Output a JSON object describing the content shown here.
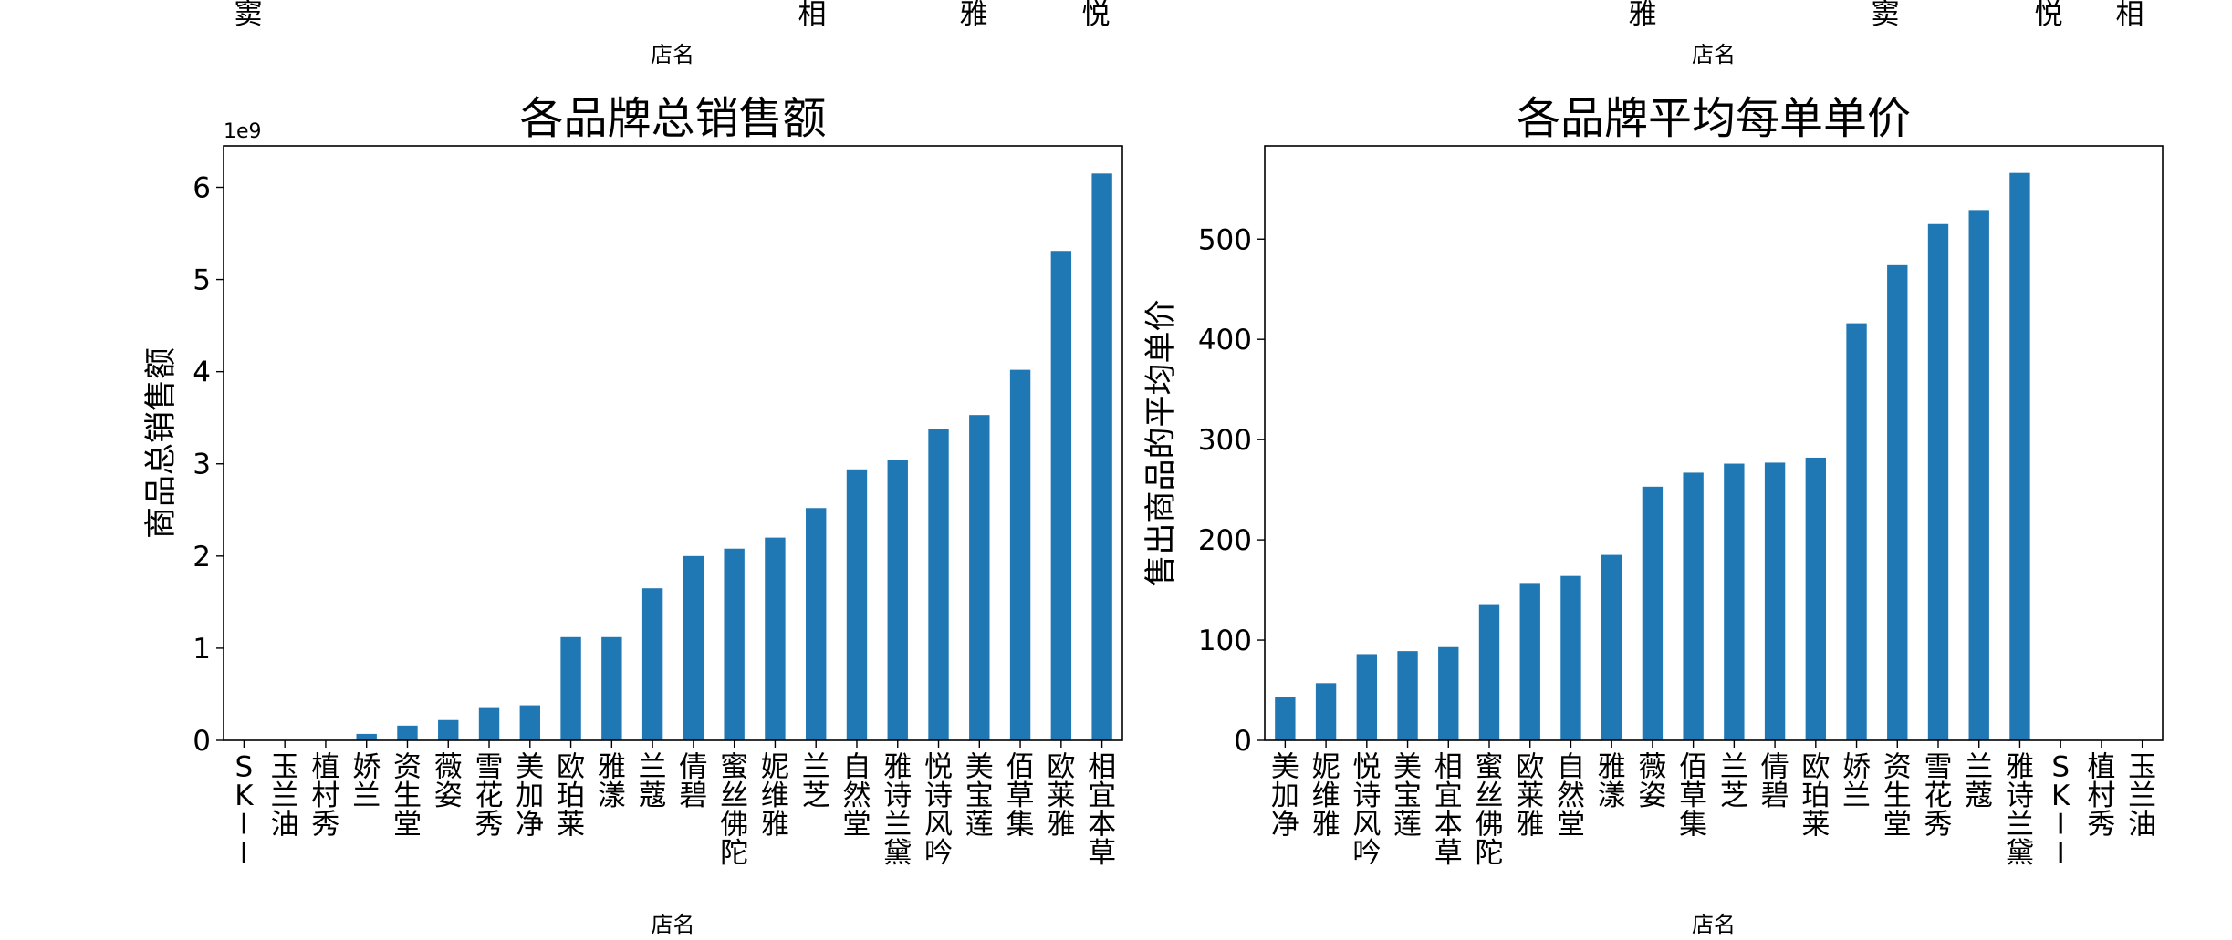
{
  "top_partial": {
    "left": {
      "tick_labels": [
        "窦",
        "相",
        "雅",
        "悦"
      ],
      "xlabel": "店名"
    },
    "right": {
      "tick_labels": [
        "雅",
        "窦",
        "悦",
        "相"
      ],
      "xlabel": "店名"
    }
  },
  "chart_data": [
    {
      "type": "bar",
      "title": "各品牌总销售额",
      "xlabel": "店名",
      "ylabel": "商品总销售额",
      "offset_text": "1e9",
      "ylim": [
        0,
        6.45
      ],
      "yticks": [
        0,
        1,
        2,
        3,
        4,
        5,
        6
      ],
      "ytick_labels": [
        "0",
        "1",
        "2",
        "3",
        "4",
        "5",
        "6"
      ],
      "grid": false,
      "color": "#1f77b4",
      "categories": [
        "SKII",
        "玉兰油",
        "植村秀",
        "娇兰",
        "资生堂",
        "薇姿",
        "雪花秀",
        "美加净",
        "欧珀莱",
        "雅漾",
        "兰蔻",
        "倩碧",
        "蜜丝佛陀",
        "妮维雅",
        "兰芝",
        "自然堂",
        "雅诗兰黛",
        "悦诗风吟",
        "美宝莲",
        "佰草集",
        "欧莱雅",
        "相宜本草"
      ],
      "values": [
        0,
        0,
        0,
        0.07,
        0.16,
        0.22,
        0.36,
        0.38,
        1.12,
        1.12,
        1.65,
        2.0,
        2.08,
        2.2,
        2.52,
        2.94,
        3.04,
        3.38,
        3.53,
        4.02,
        5.31,
        6.15
      ]
    },
    {
      "type": "bar",
      "title": "各品牌平均每单单价",
      "xlabel": "店名",
      "ylabel": "售出商品的平均单价",
      "ylim": [
        0,
        593
      ],
      "yticks": [
        0,
        100,
        200,
        300,
        400,
        500
      ],
      "ytick_labels": [
        "0",
        "100",
        "200",
        "300",
        "400",
        "500"
      ],
      "grid": false,
      "color": "#1f77b4",
      "categories": [
        "美加净",
        "妮维雅",
        "悦诗风吟",
        "美宝莲",
        "相宜本草",
        "蜜丝佛陀",
        "欧莱雅",
        "自然堂",
        "雅漾",
        "薇姿",
        "佰草集",
        "兰芝",
        "倩碧",
        "欧珀莱",
        "娇兰",
        "资生堂",
        "雪花秀",
        "兰蔻",
        "雅诗兰黛",
        "SKII",
        "植村秀",
        "玉兰油"
      ],
      "values": [
        43,
        57,
        86,
        89,
        93,
        135,
        157,
        164,
        185,
        253,
        267,
        276,
        277,
        282,
        416,
        474,
        515,
        529,
        566,
        0,
        0,
        0
      ]
    }
  ]
}
